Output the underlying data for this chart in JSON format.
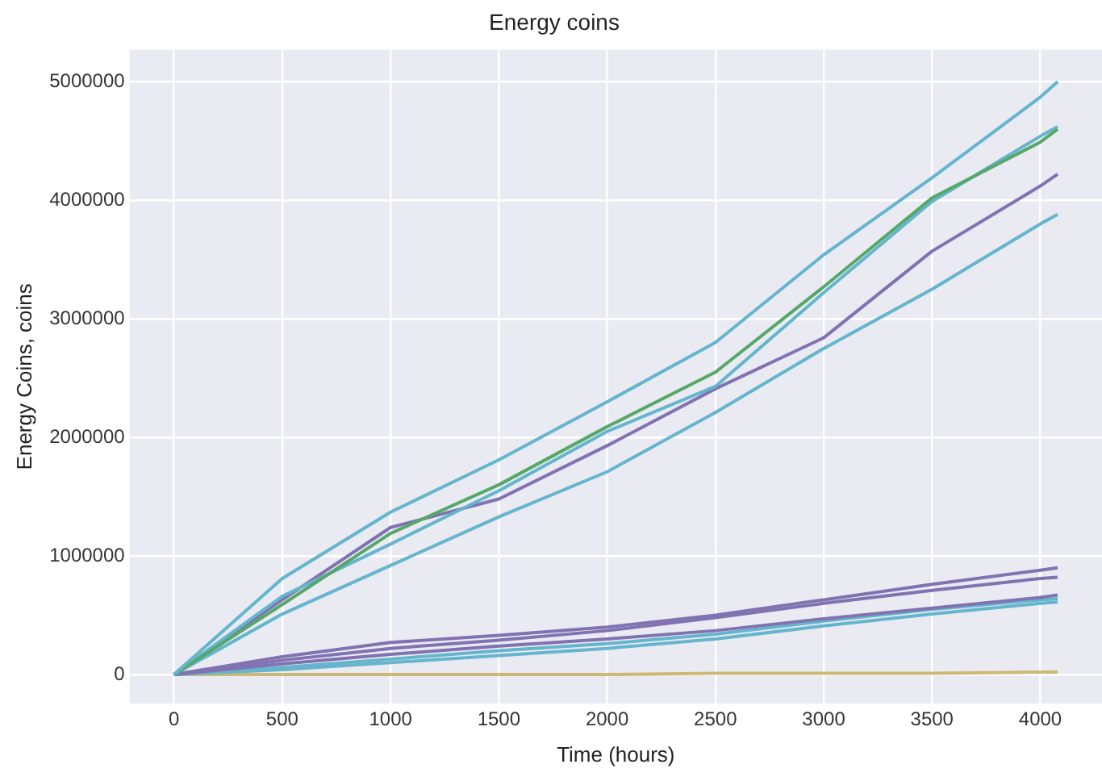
{
  "chart_data": {
    "type": "line",
    "title": "Energy coins",
    "xlabel": "Time (hours)",
    "ylabel": "Energy Coins, coins",
    "x": [
      0,
      500,
      1000,
      1500,
      2000,
      2500,
      3000,
      3500,
      4000,
      4080
    ],
    "xlim": [
      -205,
      4285
    ],
    "xticks": [
      0,
      500,
      1000,
      1500,
      2000,
      2500,
      3000,
      3500,
      4000
    ],
    "ylim": [
      -245000,
      5270000
    ],
    "yticks": [
      0,
      1000000,
      2000000,
      3000000,
      4000000,
      5000000
    ],
    "grid": true,
    "legend": false,
    "marker": "none",
    "line_style": "solid",
    "series": [
      {
        "color": "#64b5cd",
        "values": [
          0,
          810000,
          1370000,
          1810000,
          2300000,
          2800000,
          3540000,
          4190000,
          4870000,
          5000000
        ]
      },
      {
        "color": "#55a868",
        "values": [
          0,
          590000,
          1190000,
          1600000,
          2090000,
          2550000,
          3270000,
          4020000,
          4490000,
          4600000
        ]
      },
      {
        "color": "#64b5cd",
        "values": [
          0,
          660000,
          1100000,
          1550000,
          2050000,
          2430000,
          3220000,
          3990000,
          4540000,
          4620000
        ]
      },
      {
        "color": "#8172b2",
        "values": [
          0,
          630000,
          1240000,
          1480000,
          1930000,
          2410000,
          2840000,
          3570000,
          4120000,
          4220000
        ]
      },
      {
        "color": "#64b5cd",
        "values": [
          0,
          510000,
          920000,
          1330000,
          1710000,
          2210000,
          2750000,
          3250000,
          3800000,
          3880000
        ]
      },
      {
        "color": "#8172b2",
        "values": [
          0,
          150000,
          270000,
          330000,
          400000,
          500000,
          630000,
          760000,
          880000,
          900000
        ]
      },
      {
        "color": "#8172b2",
        "values": [
          0,
          120000,
          220000,
          290000,
          370000,
          480000,
          600000,
          710000,
          810000,
          820000
        ]
      },
      {
        "color": "#8172b2",
        "values": [
          0,
          90000,
          170000,
          240000,
          300000,
          370000,
          470000,
          560000,
          650000,
          670000
        ]
      },
      {
        "color": "#64b5cd",
        "values": [
          0,
          60000,
          130000,
          200000,
          260000,
          340000,
          450000,
          550000,
          630000,
          640000
        ]
      },
      {
        "color": "#64b5cd",
        "values": [
          0,
          40000,
          100000,
          160000,
          220000,
          300000,
          410000,
          510000,
          600000,
          610000
        ]
      },
      {
        "color": "#ccb974",
        "values": [
          0,
          0,
          0,
          0,
          0,
          10000,
          10000,
          10000,
          20000,
          20000
        ]
      }
    ]
  }
}
